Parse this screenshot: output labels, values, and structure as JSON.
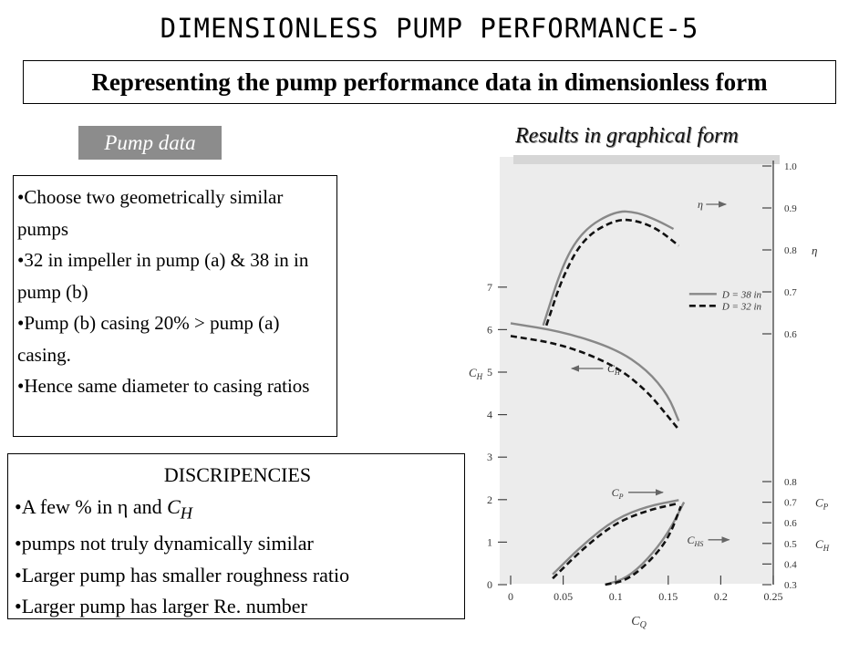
{
  "header": {
    "title": "DIMENSIONLESS PUMP PERFORMANCE-5",
    "subtitle": "Representing the pump performance data in dimensionless form"
  },
  "left": {
    "pump_data_label": "Pump data",
    "bullets": [
      "•Choose two geometrically similar pumps",
      "•32 in impeller in pump (a) & 38 in in pump (b)",
      "•Pump (b) casing 20% > pump (a) casing.",
      "•Hence same diameter to casing ratios"
    ]
  },
  "discrepancies": {
    "heading": "DISCRIPENCIES",
    "item1_prefix": "•A few % in ",
    "eta_symbol": "η",
    "item1_mid": " and ",
    "ch_symbol": "C",
    "ch_sub": "H",
    "item2": "•pumps not truly dynamically similar",
    "item3": "•Larger pump has smaller roughness ratio",
    "item4": "•Larger pump has larger Re. number"
  },
  "results_label": "Results in graphical form",
  "chart_data": {
    "type": "line",
    "xlabel": "C_Q",
    "x_ticks": [
      "0",
      "0.05",
      "0.1",
      "0.15",
      "0.2",
      "0.25"
    ],
    "xlim": [
      0,
      0.25
    ],
    "left_axis": {
      "label": "C_H",
      "ticks": [
        "0",
        "1",
        "2",
        "3",
        "4",
        "5",
        "6",
        "7"
      ],
      "ylim": [
        0,
        10
      ]
    },
    "right_axis_eta": {
      "label": "η",
      "ticks": [
        "0.6",
        "0.7",
        "0.8",
        "0.9",
        "1.0"
      ],
      "ylim": [
        0.4,
        1.0
      ]
    },
    "right_axis_cp_ch": {
      "label_p": "C_P",
      "label_h": "C_H",
      "ticks": [
        "0.3",
        "0.4",
        "0.5",
        "0.6",
        "0.7",
        "0.8"
      ]
    },
    "legend": [
      {
        "name": "D = 38 in",
        "style": "solid"
      },
      {
        "name": "D = 32 in",
        "style": "dashed"
      }
    ],
    "annotations": [
      "η",
      "C_H",
      "C_P",
      "C_HS"
    ],
    "series": [
      {
        "curve": "eta",
        "diameter": "D = 38 in",
        "x": [
          0.031,
          0.05,
          0.07,
          0.1,
          0.12,
          0.14,
          0.155
        ],
        "y": [
          0.62,
          0.77,
          0.85,
          0.893,
          0.89,
          0.87,
          0.85
        ]
      },
      {
        "curve": "eta",
        "diameter": "D = 32 in",
        "x": [
          0.034,
          0.05,
          0.07,
          0.1,
          0.12,
          0.14,
          0.16
        ],
        "y": [
          0.62,
          0.74,
          0.83,
          0.873,
          0.87,
          0.85,
          0.81
        ]
      },
      {
        "curve": "C_H",
        "diameter": "D = 38 in",
        "x": [
          0,
          0.05,
          0.1,
          0.13,
          0.15,
          0.16
        ],
        "y": [
          6.15,
          5.95,
          5.55,
          5.05,
          4.45,
          3.85
        ]
      },
      {
        "curve": "C_H",
        "diameter": "D = 32 in",
        "x": [
          0,
          0.05,
          0.1,
          0.13,
          0.15,
          0.16
        ],
        "y": [
          5.85,
          5.65,
          5.15,
          4.55,
          3.95,
          3.65
        ]
      },
      {
        "curve": "C_P",
        "diameter": "D = 38 in",
        "x": [
          0.04,
          0.07,
          0.1,
          0.13,
          0.16
        ],
        "y": [
          0.35,
          0.5,
          0.62,
          0.68,
          0.71
        ]
      },
      {
        "curve": "C_P",
        "diameter": "D = 32 in",
        "x": [
          0.04,
          0.07,
          0.1,
          0.13,
          0.16
        ],
        "y": [
          0.33,
          0.48,
          0.6,
          0.66,
          0.695
        ]
      },
      {
        "curve": "C_HS",
        "diameter": "D = 38 in",
        "x": [
          0.09,
          0.11,
          0.13,
          0.15,
          0.165
        ],
        "y": [
          0.3,
          0.33,
          0.42,
          0.55,
          0.7
        ]
      },
      {
        "curve": "C_HS",
        "diameter": "D = 32 in",
        "x": [
          0.09,
          0.11,
          0.13,
          0.15,
          0.162
        ],
        "y": [
          0.3,
          0.32,
          0.4,
          0.52,
          0.68
        ]
      }
    ]
  }
}
